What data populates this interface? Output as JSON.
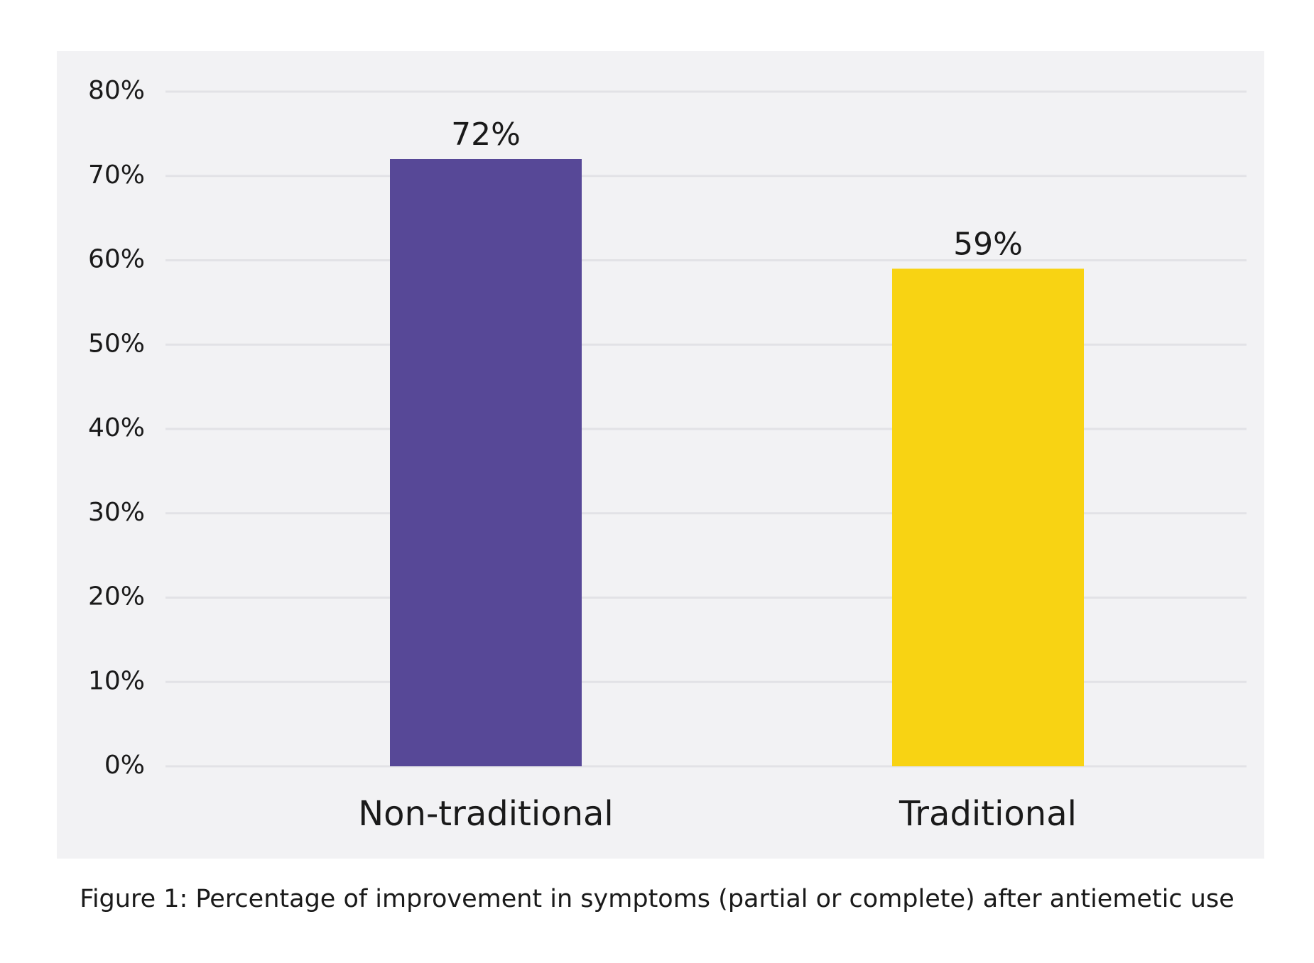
{
  "caption": "Figure 1: Percentage of improvement in symptoms (partial or complete) after antiemetic use",
  "colors": {
    "panel_background": "#f2f2f4",
    "gridline": "#e2e2e6",
    "bar_non_traditional": "#574897",
    "bar_traditional": "#f8d313",
    "text": "#1a1a1a"
  },
  "chart_data": {
    "type": "bar",
    "categories": [
      "Non-traditional",
      "Traditional"
    ],
    "values": [
      72,
      59
    ],
    "value_labels": [
      "72%",
      "59%"
    ],
    "bar_colors": [
      "#574897",
      "#f8d313"
    ],
    "title": "",
    "xlabel": "",
    "ylabel": "",
    "ylim": [
      0,
      80
    ],
    "yticks": [
      0,
      10,
      20,
      30,
      40,
      50,
      60,
      70,
      80
    ],
    "ytick_labels": [
      "0%",
      "10%",
      "20%",
      "30%",
      "40%",
      "50%",
      "60%",
      "70%",
      "80%"
    ],
    "grid": true,
    "legend": "none"
  }
}
